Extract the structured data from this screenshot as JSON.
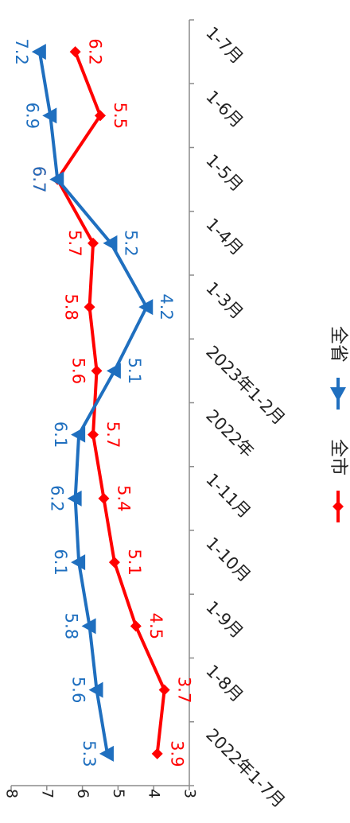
{
  "chart_data": {
    "type": "line",
    "title": "",
    "xlabel": "",
    "ylabel": "",
    "categories": [
      "2022年1-7月",
      "1-8月",
      "1-9月",
      "1-10月",
      "1-11月",
      "2022年",
      "2023年1-2月",
      "1-3月",
      "1-4月",
      "1-5月",
      "1-6月",
      "1-7月"
    ],
    "ylim": [
      3,
      8
    ],
    "yticks": [
      3,
      4,
      5,
      6,
      7,
      8
    ],
    "grid": false,
    "legend_position": "bottom",
    "series": [
      {
        "name": "全市",
        "color": "#ff0000",
        "marker": "diamond",
        "values": [
          3.9,
          3.7,
          4.5,
          5.1,
          5.4,
          5.7,
          5.6,
          5.8,
          5.7,
          6.7,
          5.5,
          6.2
        ]
      },
      {
        "name": "全省",
        "color": "#1f6fbf",
        "marker": "triangle",
        "values": [
          5.3,
          5.6,
          5.8,
          6.1,
          6.2,
          6.1,
          5.1,
          4.2,
          5.2,
          6.7,
          6.9,
          7.2
        ]
      }
    ]
  }
}
